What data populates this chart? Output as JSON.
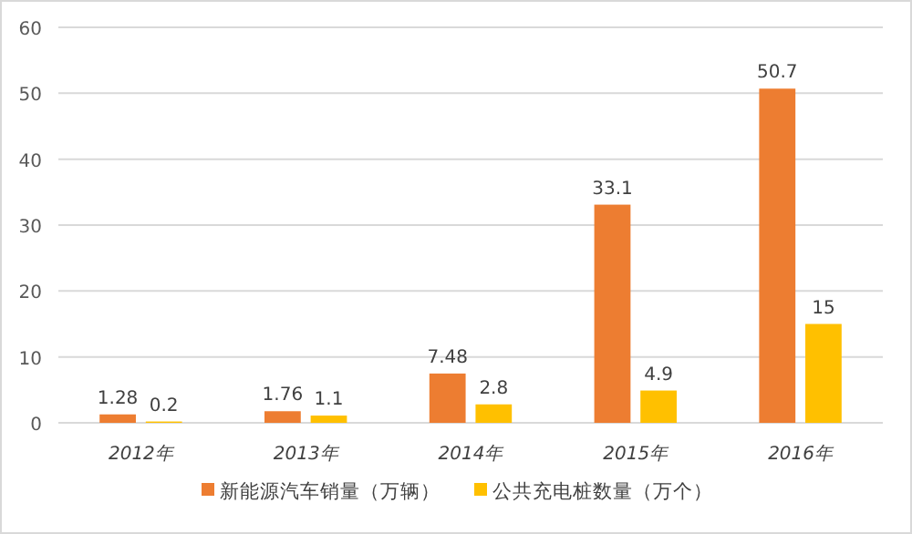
{
  "chart_data": {
    "type": "bar",
    "categories": [
      "2012年",
      "2013年",
      "2014年",
      "2015年",
      "2016年"
    ],
    "series": [
      {
        "name": "新能源汽车销量（万辆）",
        "color": "#ed7d31",
        "values": [
          1.28,
          1.76,
          7.48,
          33.1,
          50.7
        ]
      },
      {
        "name": "公共充电桩数量（万个）",
        "color": "#ffc000",
        "values": [
          0.2,
          1.1,
          2.8,
          4.9,
          15
        ]
      }
    ],
    "ylim": [
      0,
      60
    ],
    "yticks": [
      0,
      10,
      20,
      30,
      40,
      50,
      60
    ],
    "grid": "y",
    "legend": "bottom",
    "data_labels": true
  }
}
